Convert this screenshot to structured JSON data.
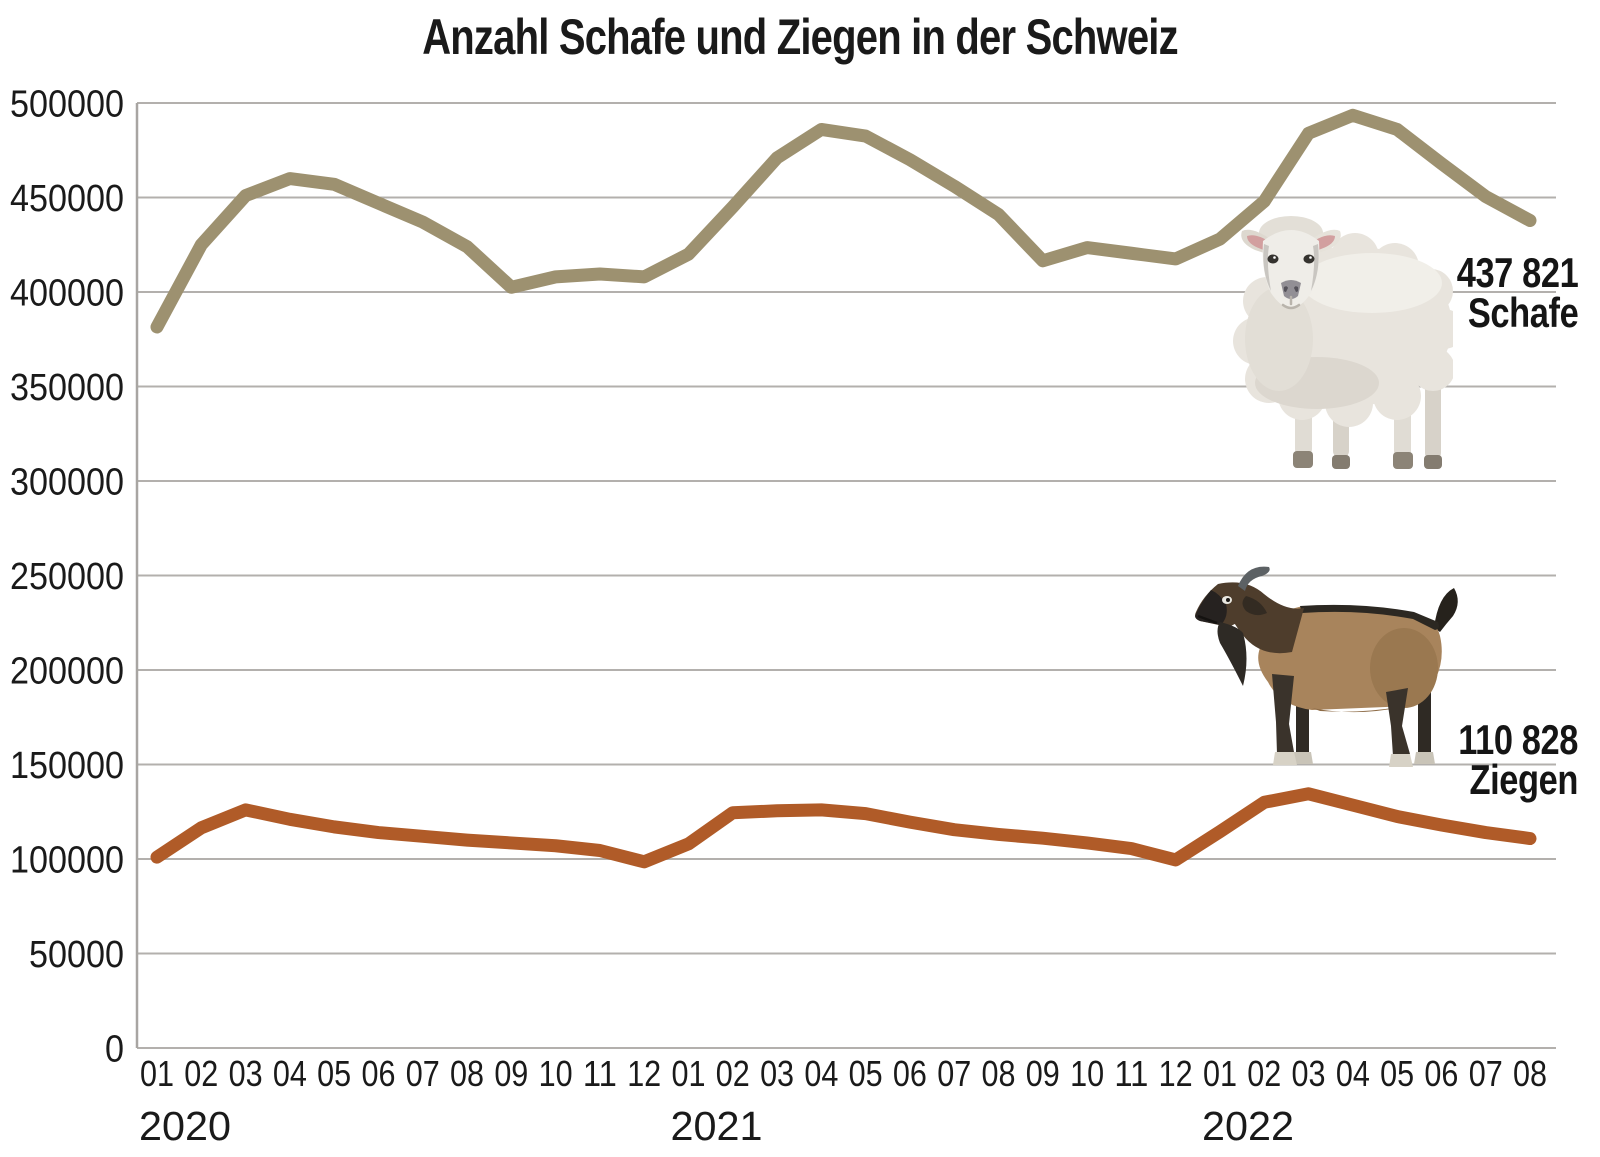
{
  "chart_data": {
    "type": "line",
    "title": "Anzahl Schafe und Ziegen in der Schweiz",
    "ylim": [
      0,
      500000
    ],
    "ytick_step": 50000,
    "grid": true,
    "y_tick_labels": [
      "0",
      "50000",
      "100000",
      "150000",
      "200000",
      "250000",
      "300000",
      "350000",
      "400000",
      "450000",
      "500000"
    ],
    "x_tick_labels": [
      "01",
      "02",
      "03",
      "04",
      "05",
      "06",
      "07",
      "08",
      "09",
      "10",
      "11",
      "12",
      "01",
      "02",
      "03",
      "04",
      "05",
      "06",
      "07",
      "08",
      "09",
      "10",
      "11",
      "12",
      "01",
      "02",
      "03",
      "04",
      "05",
      "06",
      "07",
      "08"
    ],
    "years": [
      {
        "label": "2020",
        "month_index": 0
      },
      {
        "label": "2021",
        "month_index": 12
      },
      {
        "label": "2022",
        "month_index": 24
      }
    ],
    "series": [
      {
        "name": "Schafe",
        "color": "#9d9170",
        "values": [
          381500,
          425000,
          451000,
          460000,
          457000,
          447000,
          437000,
          424000,
          402500,
          408000,
          409500,
          408000,
          420000,
          445000,
          471000,
          486000,
          482500,
          470000,
          456000,
          441000,
          416500,
          423500,
          420500,
          417500,
          428000,
          448000,
          484000,
          493500,
          486000,
          468000,
          450500,
          437821
        ]
      },
      {
        "name": "Ziegen",
        "color": "#b05b28",
        "values": [
          101000,
          116500,
          126000,
          121000,
          117000,
          114000,
          112000,
          110000,
          108500,
          107000,
          104500,
          98500,
          108000,
          124500,
          125500,
          126000,
          124000,
          119500,
          115500,
          113000,
          111000,
          108500,
          105500,
          99500,
          114500,
          130000,
          134500,
          128500,
          122500,
          118000,
          114000,
          110828
        ]
      }
    ],
    "annotations": [
      {
        "value_label": "437 821",
        "name_label": "Schafe"
      },
      {
        "value_label": "110 828",
        "name_label": "Ziegen"
      }
    ],
    "colors": {
      "grid": "#b3b0ad",
      "axis": "#a8a5a2"
    },
    "legend_position": "none"
  },
  "illustrations": {
    "sheep": "sheep-illustration",
    "goat": "goat-illustration"
  }
}
